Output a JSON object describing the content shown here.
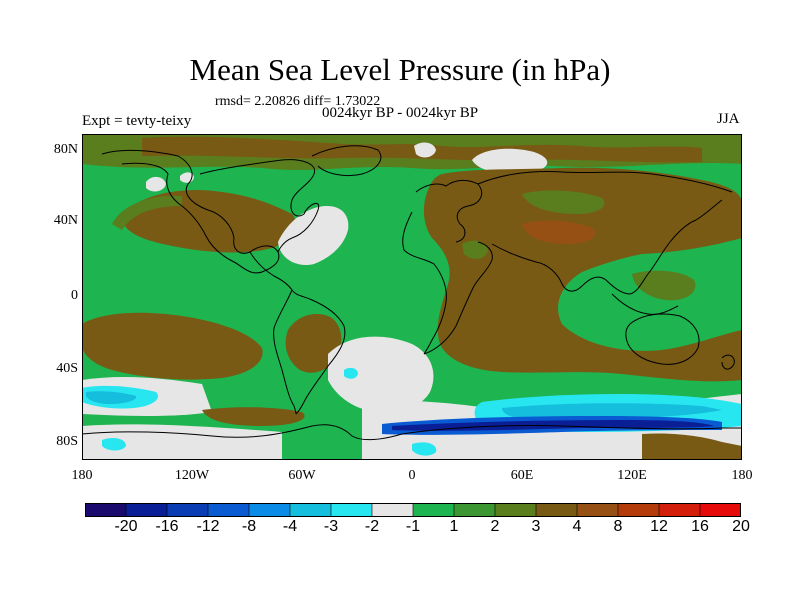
{
  "title": "Mean Sea Level Pressure (in hPa)",
  "stats": "rmsd= 2.20826 diff= 1.73022",
  "subtitle": "0024kyr BP - 0024kyr BP",
  "left_label": "Expt = tevty-teixy",
  "right_label": "JJA",
  "y_ticks": [
    "80N",
    "40N",
    "0",
    "40S",
    "80S"
  ],
  "x_ticks": [
    "180",
    "120W",
    "60W",
    "0",
    "60E",
    "120E",
    "180"
  ],
  "colorbar": {
    "colors": [
      "#1a0a6e",
      "#0a1e96",
      "#0a3cb4",
      "#0a5ad2",
      "#0a8ce6",
      "#14bedc",
      "#28e6f0",
      "#e6e6e6",
      "#1eb450",
      "#3c9632",
      "#5a7d1e",
      "#785a14",
      "#965014",
      "#b43c0a",
      "#d21e0a",
      "#e60a0a"
    ],
    "labels": [
      "-20",
      "-16",
      "-12",
      "-8",
      "-4",
      "-3",
      "-2",
      "-1",
      "1",
      "2",
      "3",
      "4",
      "8",
      "12",
      "16",
      "20"
    ]
  },
  "map_colors": {
    "green": "#1eb450",
    "brown": "#785a14",
    "olive": "#5a7d1e",
    "gray": "#e6e6e6",
    "cyan": "#28e6f0",
    "lightblue": "#14bedc",
    "blue": "#0a5ad2",
    "darkblue": "#0a1e96"
  }
}
